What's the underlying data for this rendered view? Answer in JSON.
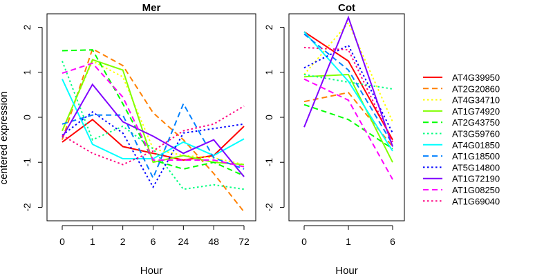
{
  "chart_data": {
    "type": "line",
    "ylabel": "centered expression",
    "legend_position": "right",
    "series": [
      {
        "name": "AT4G39950",
        "color": "#ff0000",
        "dash": "solid"
      },
      {
        "name": "AT2G20860",
        "color": "#ff8000",
        "dash": "dashed"
      },
      {
        "name": "AT4G34710",
        "color": "#ffff00",
        "dash": "dotted"
      },
      {
        "name": "AT1G74920",
        "color": "#80ff00",
        "dash": "solid"
      },
      {
        "name": "AT2G43750",
        "color": "#00ff00",
        "dash": "dashed"
      },
      {
        "name": "AT3G59760",
        "color": "#00ff80",
        "dash": "dotted"
      },
      {
        "name": "AT4G01850",
        "color": "#00ffff",
        "dash": "solid"
      },
      {
        "name": "AT1G18500",
        "color": "#0080ff",
        "dash": "dashed"
      },
      {
        "name": "AT5G14800",
        "color": "#0000ff",
        "dash": "dotted"
      },
      {
        "name": "AT1G72190",
        "color": "#8000ff",
        "dash": "solid"
      },
      {
        "name": "AT1G08250",
        "color": "#ff00ff",
        "dash": "dashed"
      },
      {
        "name": "AT1G69040",
        "color": "#ff0080",
        "dash": "dotted"
      }
    ],
    "panels": [
      {
        "title": "Mer",
        "xlabel": "Hour",
        "categories": [
          "0",
          "1",
          "2",
          "6",
          "24",
          "48",
          "72"
        ],
        "ylim": [
          -2.3,
          2.3
        ],
        "yticks": [
          -2,
          -1,
          0,
          1,
          2
        ],
        "values": {
          "AT4G39950": [
            -0.55,
            -0.05,
            -0.65,
            -0.8,
            -0.95,
            -0.85,
            -0.2
          ],
          "AT2G20860": [
            -0.5,
            1.52,
            1.15,
            0.1,
            -0.5,
            -1.25,
            -2.1
          ],
          "AT4G34710": [
            -0.3,
            1.25,
            0.9,
            -0.7,
            -0.85,
            -0.9,
            -1.05
          ],
          "AT1G74920": [
            -0.3,
            1.28,
            1.05,
            -1.0,
            -0.85,
            -1.0,
            -1.05
          ],
          "AT2G43750": [
            1.48,
            1.5,
            0.3,
            -0.95,
            -1.15,
            -1.0,
            -1.3
          ],
          "AT3G59760": [
            1.25,
            -0.5,
            -0.2,
            -0.7,
            -1.6,
            -1.5,
            -1.6
          ],
          "AT4G01850": [
            0.85,
            -0.6,
            -0.92,
            -0.92,
            -0.55,
            -0.85,
            -0.48
          ],
          "AT1G18500": [
            -0.15,
            0.05,
            0.05,
            -1.35,
            0.3,
            -0.9,
            -1.15
          ],
          "AT5G14800": [
            -0.4,
            0.12,
            -0.35,
            -1.55,
            -0.35,
            -0.25,
            -0.15
          ],
          "AT1G72190": [
            -0.45,
            0.73,
            -0.1,
            -0.42,
            -0.8,
            -0.5,
            -1.32
          ],
          "AT1G08250": [
            0.98,
            1.2,
            0.45,
            -0.95,
            -0.95,
            -0.95,
            -1.1
          ],
          "AT1G69040": [
            -0.4,
            -0.8,
            -1.05,
            -0.75,
            -0.3,
            -0.15,
            0.25
          ]
        }
      },
      {
        "title": "Cot",
        "xlabel": "Hour",
        "categories": [
          "0",
          "1",
          "6"
        ],
        "ylim": [
          -2.3,
          2.3
        ],
        "yticks": [
          -2,
          -1,
          0,
          1,
          2
        ],
        "values": {
          "AT4G39950": [
            1.9,
            1.25,
            -0.5
          ],
          "AT2G20860": [
            0.35,
            0.55,
            -0.65
          ],
          "AT4G34710": [
            0.95,
            2.1,
            -0.1
          ],
          "AT1G74920": [
            0.9,
            0.95,
            -1.0
          ],
          "AT2G43750": [
            0.28,
            -0.05,
            -0.7
          ],
          "AT3G59760": [
            0.95,
            0.78,
            0.63
          ],
          "AT4G01850": [
            1.9,
            0.8,
            -0.75
          ],
          "AT1G18500": [
            1.85,
            1.05,
            -0.6
          ],
          "AT5G14800": [
            1.1,
            1.6,
            -0.35
          ],
          "AT1G72190": [
            -0.22,
            2.22,
            -0.65
          ],
          "AT1G08250": [
            0.85,
            0.38,
            -1.38
          ],
          "AT1G69040": [
            1.55,
            1.5,
            -0.55
          ]
        }
      }
    ]
  }
}
